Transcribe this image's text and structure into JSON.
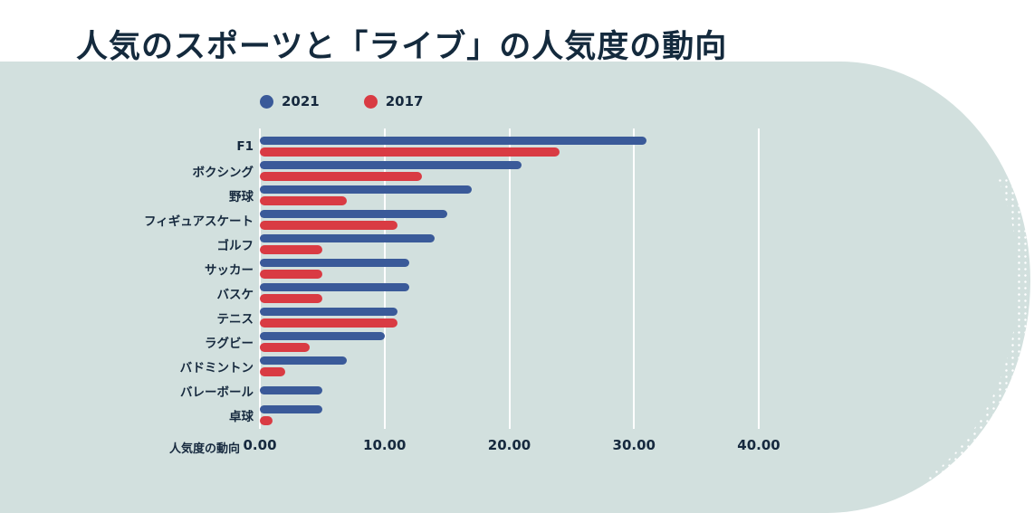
{
  "title": "人気のスポーツと「ライブ」の人気度の動向",
  "colors": {
    "page_background": "#ffffff",
    "panel_background": "#d2e0de",
    "series_2021": "#3a5a99",
    "series_2017": "#d93b43",
    "text_navy": "#16293e",
    "title_navy": "#142a3d",
    "gridline": "#ffffff",
    "halftone_dots": "#ffffff"
  },
  "legend": [
    {
      "label": "2021",
      "color": "#3a5a99"
    },
    {
      "label": "2017",
      "color": "#d93b43"
    }
  ],
  "axis": {
    "title": "人気度の動向",
    "tick_labels": [
      "0.00",
      "10.00",
      "20.00",
      "30.00",
      "40.00"
    ],
    "tick_values": [
      0,
      10,
      20,
      30,
      40
    ]
  },
  "chart_data": {
    "type": "bar",
    "orientation": "horizontal",
    "title": "人気のスポーツと「ライブ」の人気度の動向",
    "xlabel": "人気度の動向",
    "xlim": [
      0,
      40
    ],
    "grid": true,
    "legend_position": "top-left",
    "categories": [
      "F1",
      "ボクシング",
      "野球",
      "フィギュアスケート",
      "ゴルフ",
      "サッカー",
      "バスケ",
      "テニス",
      "ラグビー",
      "バドミントン",
      "バレーボール",
      "卓球"
    ],
    "series": [
      {
        "name": "2021",
        "color": "#3a5a99",
        "values": [
          31,
          21,
          17,
          15,
          14,
          12,
          12,
          11,
          10,
          7,
          5,
          5
        ]
      },
      {
        "name": "2017",
        "color": "#d93b43",
        "values": [
          24,
          13,
          7,
          11,
          5,
          5,
          5,
          11,
          4,
          2,
          0,
          1
        ]
      }
    ]
  }
}
